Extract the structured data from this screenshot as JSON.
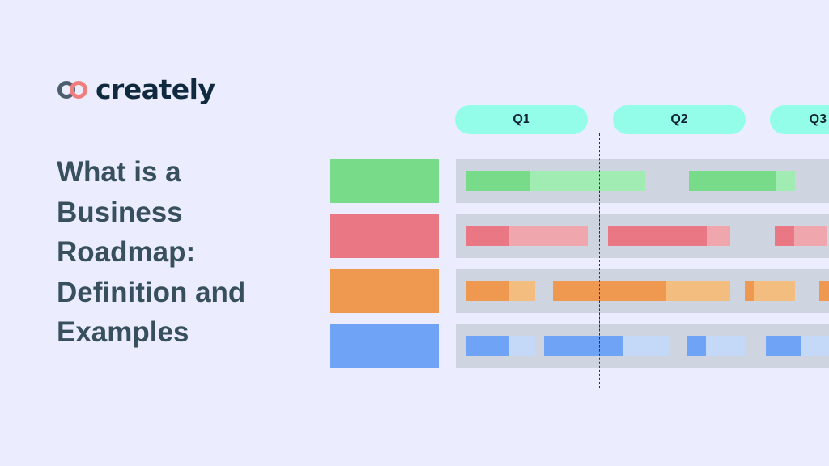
{
  "brand": {
    "name": "creately",
    "logo_colors": [
      "#4b5e70",
      "#ef7f7f"
    ]
  },
  "title_lines": [
    "What is a",
    "Business",
    "Roadmap:",
    "Definition and",
    "Examples"
  ],
  "quarters": [
    "Q1",
    "Q2",
    "Q3"
  ],
  "colors": {
    "background": "#ebedfe",
    "quarter_pill": "#94fde9",
    "track": "#ced5e0",
    "rows": [
      {
        "dark": "#78db89",
        "light": "#a1ecb2"
      },
      {
        "dark": "#e97884",
        "light": "#efa6ad"
      },
      {
        "dark": "#ef984f",
        "light": "#f3bd80"
      },
      {
        "dark": "#6fa3f5",
        "light": "#c4d9f7"
      }
    ]
  }
}
